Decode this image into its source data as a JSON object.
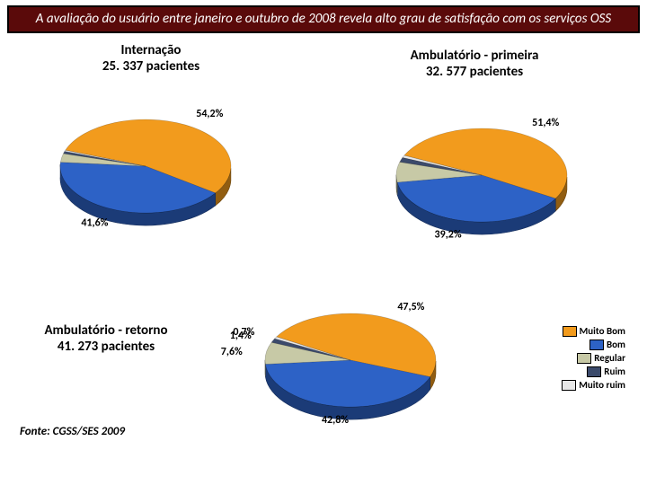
{
  "header_text": "A avaliação do usuário entre janeiro e outubro de 2008 revela alto grau de satisfação com os serviços OSS",
  "source": "Fonte: CGSS/SES 2009",
  "colors": {
    "muito_bom": "#f29b1d",
    "bom": "#2d62c6",
    "regular": "#c7c9a6",
    "ruim": "#3b4a6b",
    "muito_ruim": "#e8e8e8",
    "edge": "#000000",
    "header_bg": "#5a0a0a",
    "header_border": "#000000"
  },
  "legend": {
    "items": [
      {
        "label": "Muito Bom",
        "key": "muito_bom"
      },
      {
        "label": "Bom",
        "key": "bom"
      },
      {
        "label": "Regular",
        "key": "regular"
      },
      {
        "label": "Ruim",
        "key": "ruim"
      },
      {
        "label": "Muito ruim",
        "key": "muito_ruim"
      }
    ]
  },
  "charts": {
    "internacao": {
      "title_line1": "Internação",
      "title_line2": "25. 337 pacientes",
      "slices": [
        {
          "key": "muito_bom",
          "label": "54,2%",
          "value": 54.2
        },
        {
          "key": "bom",
          "label": "41,6%",
          "value": 41.6
        },
        {
          "key": "regular",
          "label": "",
          "value": 3.0
        },
        {
          "key": "ruim",
          "label": "",
          "value": 0.8
        },
        {
          "key": "muito_ruim",
          "label": "",
          "value": 0.4
        }
      ],
      "start_angle_deg": 200
    },
    "primeira": {
      "title_line1": "Ambulatório - primeira",
      "title_line2": "32. 577 pacientes",
      "slices": [
        {
          "key": "muito_bom",
          "label": "51,4%",
          "value": 51.4
        },
        {
          "key": "bom",
          "label": "39,2%",
          "value": 39.2
        },
        {
          "key": "regular",
          "label": "",
          "value": 7.0
        },
        {
          "key": "ruim",
          "label": "",
          "value": 1.6
        },
        {
          "key": "muito_ruim",
          "label": "",
          "value": 0.8
        }
      ],
      "start_angle_deg": 205
    },
    "retorno": {
      "title_line1": "Ambulatório - retorno",
      "title_line2": "41. 273 pacientes",
      "slices": [
        {
          "key": "muito_bom",
          "label": "47,5%",
          "value": 47.5
        },
        {
          "key": "bom",
          "label": "42,8%",
          "value": 42.8
        },
        {
          "key": "regular",
          "label": "7,6%",
          "value": 7.6
        },
        {
          "key": "ruim",
          "label": "1,4%",
          "value": 1.4
        },
        {
          "key": "muito_ruim",
          "label": "0,7%",
          "value": 0.7
        }
      ],
      "start_angle_deg": 210
    }
  },
  "layout": {
    "pie_rx": 95,
    "pie_ry": 52,
    "pie_depth": 14,
    "label_radius_factor": 1.28
  }
}
